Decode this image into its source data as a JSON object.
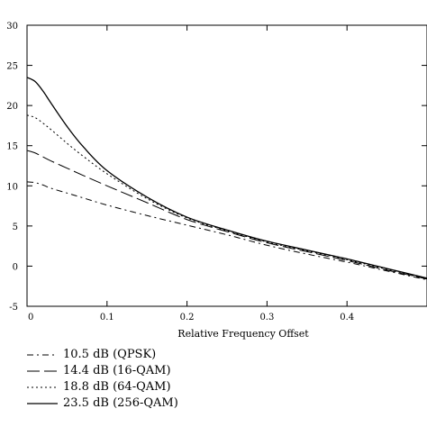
{
  "chart_data": {
    "type": "line",
    "title": "",
    "xlabel": "Relative Frequency Offset",
    "ylabel": "",
    "xlim": [
      0,
      0.5
    ],
    "ylim": [
      -5,
      30
    ],
    "x_ticks": [
      "0",
      "0.1",
      "0.2",
      "0.3",
      "0.4"
    ],
    "y_ticks": [
      "-5",
      "0",
      "5",
      "10",
      "15",
      "20",
      "25",
      "30"
    ],
    "grid": false,
    "legend_position": "below plot",
    "series": [
      {
        "name": "10.5 dB (QPSK)",
        "style": "dash-dot",
        "x": [
          0,
          0.01,
          0.02,
          0.03,
          0.05,
          0.07,
          0.1,
          0.15,
          0.2,
          0.25,
          0.3,
          0.35,
          0.4,
          0.45,
          0.5
        ],
        "y": [
          10.5,
          10.4,
          10.1,
          9.7,
          9.1,
          8.5,
          7.6,
          6.3,
          5.1,
          3.9,
          2.6,
          1.5,
          0.5,
          -0.6,
          -1.7
        ]
      },
      {
        "name": "14.4 dB (16-QAM)",
        "style": "long-dash",
        "x": [
          0,
          0.01,
          0.02,
          0.03,
          0.05,
          0.07,
          0.1,
          0.15,
          0.2,
          0.25,
          0.3,
          0.35,
          0.4,
          0.45,
          0.5
        ],
        "y": [
          14.4,
          14.1,
          13.6,
          13.1,
          12.2,
          11.3,
          10.0,
          7.9,
          5.8,
          4.3,
          2.9,
          1.8,
          0.7,
          -0.5,
          -1.6
        ]
      },
      {
        "name": "18.8 dB (64-QAM)",
        "style": "dotted",
        "x": [
          0,
          0.01,
          0.02,
          0.03,
          0.05,
          0.07,
          0.1,
          0.15,
          0.2,
          0.25,
          0.3,
          0.35,
          0.4,
          0.45,
          0.5
        ],
        "y": [
          18.8,
          18.5,
          17.8,
          17.0,
          15.3,
          13.7,
          11.5,
          8.4,
          6.0,
          4.4,
          3.0,
          1.9,
          0.8,
          -0.4,
          -1.6
        ]
      },
      {
        "name": "23.5 dB (256-QAM)",
        "style": "solid",
        "x": [
          0,
          0.01,
          0.02,
          0.03,
          0.05,
          0.07,
          0.1,
          0.15,
          0.2,
          0.25,
          0.3,
          0.35,
          0.4,
          0.45,
          0.5
        ],
        "y": [
          23.5,
          23.0,
          21.8,
          20.3,
          17.4,
          14.9,
          11.9,
          8.6,
          6.1,
          4.5,
          3.1,
          2.0,
          0.9,
          -0.3,
          -1.5
        ]
      }
    ]
  }
}
